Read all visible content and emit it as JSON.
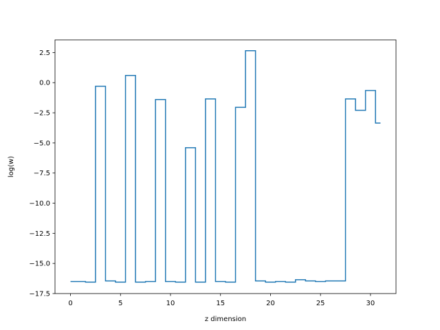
{
  "chart_data": {
    "type": "line",
    "drawstyle": "steps-mid",
    "title": "",
    "xlabel": "z dimension",
    "ylabel": "log(w)",
    "xlim": [
      -1.55,
      32.55
    ],
    "ylim": [
      -17.5,
      3.55
    ],
    "xticks": [
      0,
      5,
      10,
      15,
      20,
      25,
      30
    ],
    "xtick_labels": [
      "0",
      "5",
      "10",
      "15",
      "20",
      "25",
      "30"
    ],
    "yticks": [
      -17.5,
      -15.0,
      -12.5,
      -10.0,
      -7.5,
      -5.0,
      -2.5,
      0.0,
      2.5
    ],
    "ytick_labels": [
      "−17.5",
      "−15.0",
      "−12.5",
      "−10.0",
      "−7.5",
      "−5.0",
      "−2.5",
      "0.0",
      "2.5"
    ],
    "grid": false,
    "legend": "none",
    "series": [
      {
        "color": "#1f77b4",
        "x": [
          0,
          1,
          2,
          3,
          4,
          5,
          6,
          7,
          8,
          9,
          10,
          11,
          12,
          13,
          14,
          15,
          16,
          17,
          18,
          19,
          20,
          21,
          22,
          23,
          24,
          25,
          26,
          27,
          28,
          29,
          30,
          31
        ],
        "y": [
          -16.5,
          -16.5,
          -16.55,
          -0.3,
          -16.45,
          -16.55,
          0.6,
          -16.55,
          -16.5,
          -1.4,
          -16.5,
          -16.55,
          -5.4,
          -16.55,
          -1.35,
          -16.5,
          -16.55,
          -2.05,
          2.65,
          -16.45,
          -16.55,
          -16.5,
          -16.55,
          -16.35,
          -16.45,
          -16.5,
          -16.45,
          -16.45,
          -1.35,
          -2.3,
          -0.65,
          -3.35
        ]
      }
    ]
  }
}
